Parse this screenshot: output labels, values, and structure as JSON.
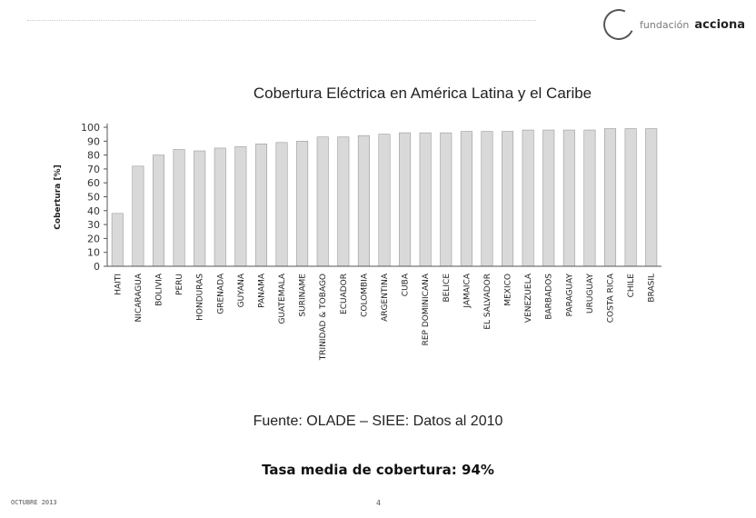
{
  "header": {
    "logo_prefix": "fundación",
    "logo_brand": "acciona"
  },
  "footer": {
    "source": "Fuente: OLADE – SIEE: Datos al 2010",
    "average_label": "Tasa media de cobertura: 94%",
    "date": "OCTUBRE 2013",
    "page": "4"
  },
  "chart_data": {
    "type": "bar",
    "title": "Cobertura Eléctrica en América Latina y el Caribe",
    "xlabel": "",
    "ylabel": "Cobertura [%]",
    "ylim": [
      0,
      100
    ],
    "yticks": [
      0,
      10,
      20,
      30,
      40,
      50,
      60,
      70,
      80,
      90,
      100
    ],
    "grid": false,
    "categories": [
      "HAITI",
      "NICARAGUA",
      "BOLIVIA",
      "PERU",
      "HONDURAS",
      "GRENADA",
      "GUYANA",
      "PANAMA",
      "GUATEMALA",
      "SURINAME",
      "TRINIDAD & TOBAGO",
      "ECUADOR",
      "COLOMBIA",
      "ARGENTINA",
      "CUBA",
      "REP DOMINICANA",
      "BELICE",
      "JAMAICA",
      "EL SALVADOR",
      "MEXICO",
      "VENEZUELA",
      "BARBADOS",
      "PARAGUAY",
      "URUGUAY",
      "COSTA RICA",
      "CHILE",
      "BRASIL"
    ],
    "values": [
      38,
      72,
      80,
      84,
      83,
      85,
      86,
      88,
      89,
      90,
      93,
      93,
      94,
      95,
      96,
      96,
      96,
      97,
      97,
      97,
      98,
      98,
      98,
      98,
      99,
      99,
      99
    ],
    "colors": {
      "bar": "#d9d9d9",
      "bar_stroke": "#9a9a9a",
      "axis": "#555555"
    }
  }
}
